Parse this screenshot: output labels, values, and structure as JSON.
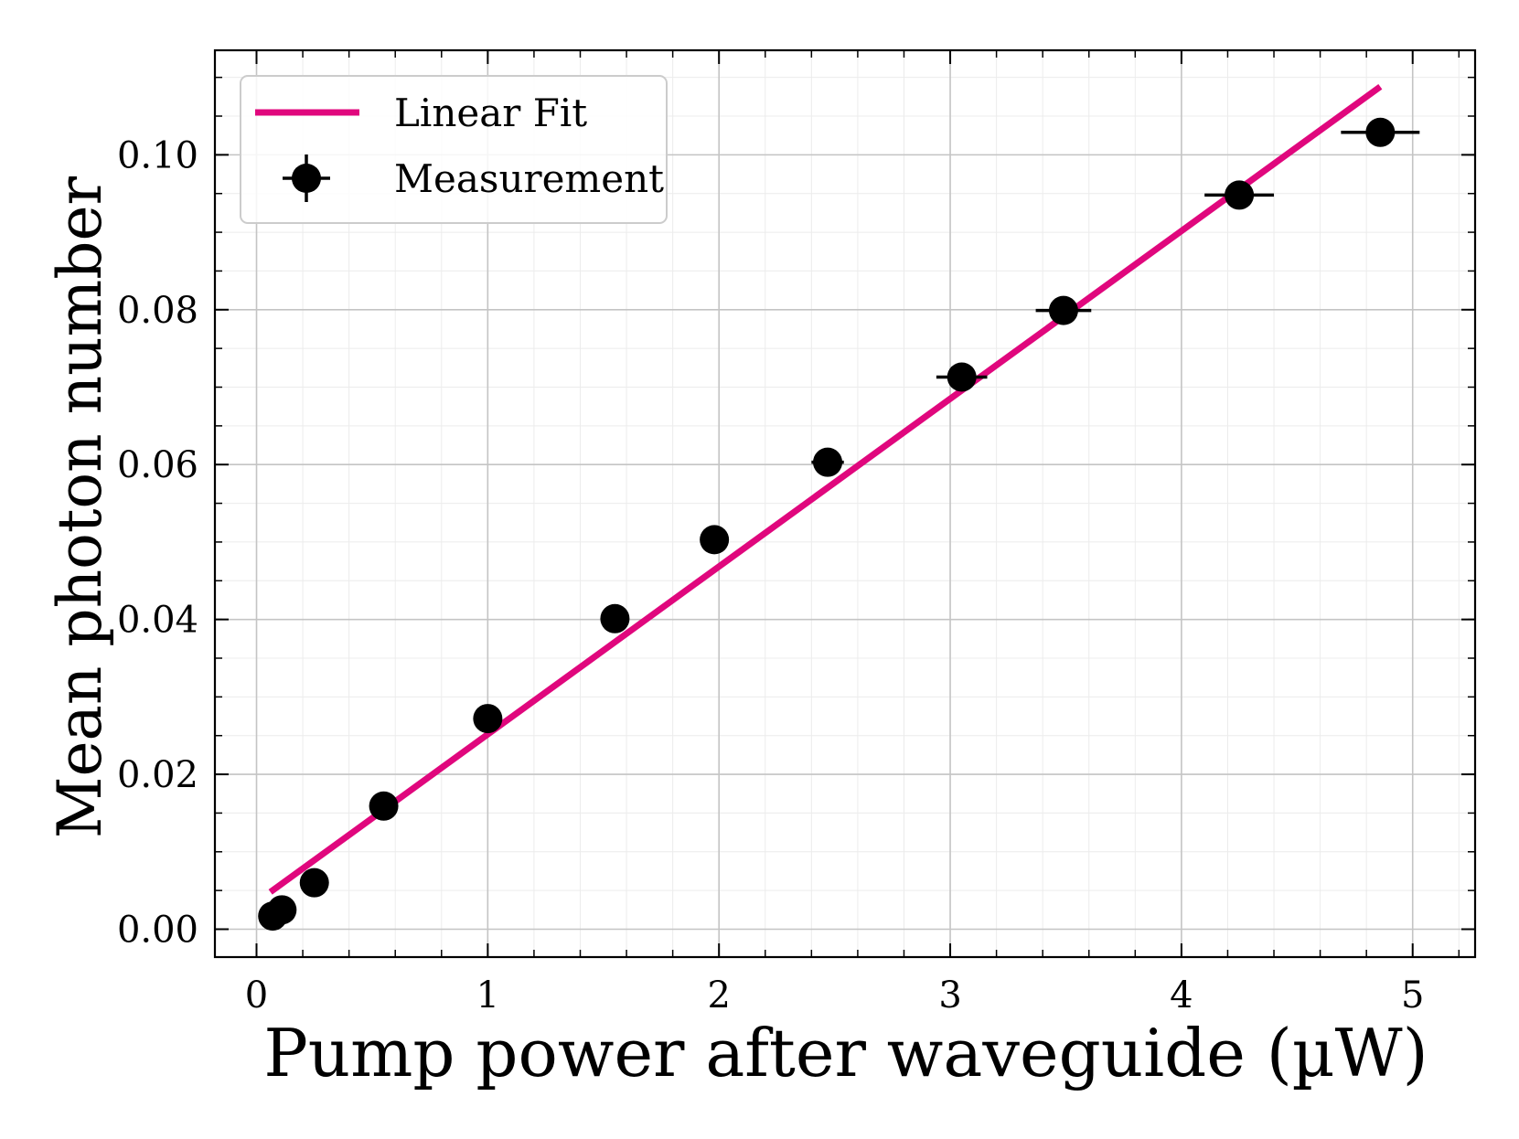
{
  "chart_data": {
    "type": "scatter",
    "title": "",
    "xlabel": "Pump power after waveguide (µW)",
    "ylabel": "Mean photon number",
    "xlim": [
      -0.18,
      5.27
    ],
    "ylim": [
      -0.0036,
      0.1135
    ],
    "grid": true,
    "legend_position": "top-left",
    "x_ticks": [
      0,
      1,
      2,
      3,
      4,
      5
    ],
    "x_tick_labels": [
      "0",
      "1",
      "2",
      "3",
      "4",
      "5"
    ],
    "y_ticks": [
      0.0,
      0.02,
      0.04,
      0.06,
      0.08,
      0.1
    ],
    "y_tick_labels": [
      "0.00",
      "0.02",
      "0.04",
      "0.06",
      "0.08",
      "0.10"
    ],
    "series": [
      {
        "name": "Measurement",
        "kind": "errorbar",
        "color": "#000000",
        "x": [
          0.07,
          0.11,
          0.25,
          0.55,
          1.0,
          1.55,
          1.98,
          2.47,
          3.05,
          3.49,
          4.25,
          4.86
        ],
        "y": [
          0.0017,
          0.0025,
          0.006,
          0.0159,
          0.0272,
          0.0401,
          0.0503,
          0.0603,
          0.0713,
          0.0799,
          0.0948,
          0.1029
        ],
        "xerr": [
          0.0,
          0.0,
          0.0,
          0.0,
          0.0,
          0.0,
          0.05,
          0.07,
          0.11,
          0.12,
          0.15,
          0.17
        ]
      },
      {
        "name": "Linear Fit",
        "kind": "line",
        "color": "#e0077d",
        "x": [
          0.06,
          4.86
        ],
        "y": [
          0.0048,
          0.1088
        ]
      }
    ]
  }
}
